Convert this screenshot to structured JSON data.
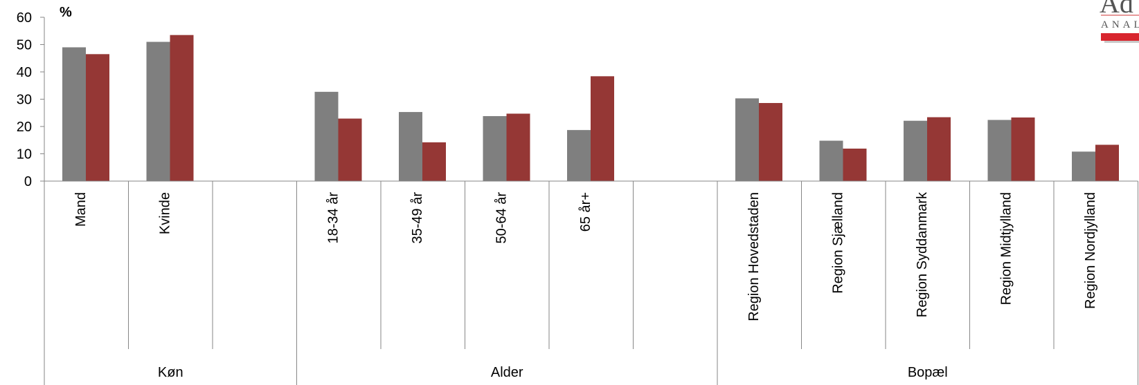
{
  "chart_data": {
    "type": "bar",
    "unit_label": "%",
    "ylim": [
      0,
      60
    ],
    "yticks": [
      0,
      10,
      20,
      30,
      40,
      50,
      60
    ],
    "grid": false,
    "legend": "none",
    "colors": [
      "#7f7f7f",
      "#953735"
    ],
    "categories": [
      "Mand",
      "Kvinde",
      "",
      "18-34 år",
      "35-49 år",
      "50-64 år",
      "65 år+",
      "",
      "Region Hovedstaden",
      "Region Sjælland",
      "Region Syddanmark",
      "Region Midtjylland",
      "Region Nordjylland"
    ],
    "groups": [
      {
        "label": "Køn",
        "span": [
          0,
          2
        ]
      },
      {
        "label": "Alder",
        "span": [
          3,
          7
        ]
      },
      {
        "label": "Bopæl",
        "span": [
          8,
          12
        ]
      }
    ],
    "series": [
      {
        "values": [
          49,
          51,
          null,
          32.7,
          25.3,
          23.8,
          18.7,
          null,
          30.3,
          14.8,
          22.1,
          22.4,
          10.8
        ]
      },
      {
        "values": [
          46.5,
          53.5,
          null,
          22.9,
          14.2,
          24.7,
          38.4,
          null,
          28.6,
          11.9,
          23.4,
          23.3,
          13.3
        ]
      }
    ]
  },
  "logo": {
    "text_top": "Ad",
    "text_bottom": "ANAL"
  }
}
